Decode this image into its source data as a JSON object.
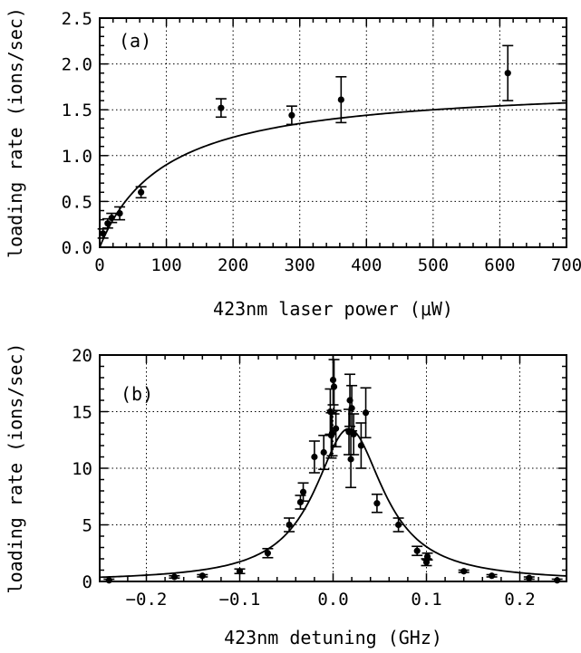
{
  "chart_data": [
    {
      "type": "scatter",
      "panel_label": "(a)",
      "xlabel": "423nm laser power (μW)",
      "ylabel": "loading rate (ions/sec)",
      "xlim": [
        0,
        700
      ],
      "ylim": [
        0,
        2.5
      ],
      "x_ticks": [
        0,
        100,
        200,
        300,
        400,
        500,
        600,
        700
      ],
      "y_ticks": [
        0.0,
        0.5,
        1.0,
        1.5,
        2.0,
        2.5
      ],
      "x_tick_labels": [
        "0",
        "100",
        "200",
        "300",
        "400",
        "500",
        "600",
        "700"
      ],
      "y_tick_labels": [
        "0.0",
        "0.5",
        "1.0",
        "1.5",
        "2.0",
        "2.5"
      ],
      "grid": true,
      "series": [
        {
          "x": [
            5,
            12,
            18,
            30,
            62,
            182,
            288,
            362,
            612
          ],
          "y": [
            0.15,
            0.26,
            0.32,
            0.37,
            0.6,
            1.52,
            1.44,
            1.61,
            1.9
          ],
          "yerr": [
            0.05,
            0.05,
            0.05,
            0.07,
            0.06,
            0.1,
            0.1,
            0.25,
            0.3
          ]
        }
      ],
      "fit": {
        "form": "saturation",
        "ymax": 1.8,
        "x0": 100
      }
    },
    {
      "type": "scatter",
      "panel_label": "(b)",
      "xlabel": "423nm detuning (GHz)",
      "ylabel": "loading rate (ions/sec)",
      "xlim": [
        -0.25,
        0.25
      ],
      "ylim": [
        0,
        20
      ],
      "x_ticks": [
        -0.2,
        -0.1,
        0.0,
        0.1,
        0.2
      ],
      "y_ticks": [
        0,
        5,
        10,
        15,
        20
      ],
      "x_tick_labels": [
        "−0.2",
        "−0.1",
        "0.0",
        "0.1",
        "0.2"
      ],
      "y_tick_labels": [
        "0",
        "5",
        "10",
        "15",
        "20"
      ],
      "grid": true,
      "series": [
        {
          "x": [
            -0.24,
            -0.17,
            -0.14,
            -0.1,
            -0.07,
            -0.047,
            -0.035,
            -0.032,
            -0.02,
            -0.01,
            -0.003,
            -0.002,
            -0.001,
            0.0,
            0.001,
            0.003,
            0.017,
            0.018,
            0.019,
            0.02,
            0.022,
            0.03,
            0.035,
            0.047,
            0.07,
            0.09,
            0.1,
            0.101,
            0.14,
            0.17,
            0.21,
            0.24
          ],
          "y": [
            0.1,
            0.4,
            0.5,
            0.9,
            2.5,
            5.0,
            7.0,
            7.9,
            11.0,
            11.4,
            15.0,
            12.9,
            13.1,
            17.8,
            17.2,
            13.5,
            13.2,
            16.0,
            10.8,
            15.3,
            13.0,
            12.0,
            14.9,
            6.9,
            5.0,
            2.7,
            1.7,
            2.2,
            0.9,
            0.5,
            0.3,
            0.1
          ],
          "yerr": [
            0.1,
            0.1,
            0.1,
            0.2,
            0.4,
            0.6,
            0.6,
            0.8,
            1.4,
            1.5,
            2.0,
            2.0,
            2.0,
            2.2,
            2.4,
            1.6,
            2.0,
            2.3,
            2.5,
            2.0,
            1.8,
            2.0,
            2.2,
            0.8,
            0.6,
            0.4,
            0.3,
            0.3,
            0.1,
            0.1,
            0.1,
            0.1
          ]
        }
      ],
      "fit": {
        "form": "lorentzian",
        "peak": 13.5,
        "center": 0.017,
        "hwhm": 0.045
      }
    }
  ]
}
